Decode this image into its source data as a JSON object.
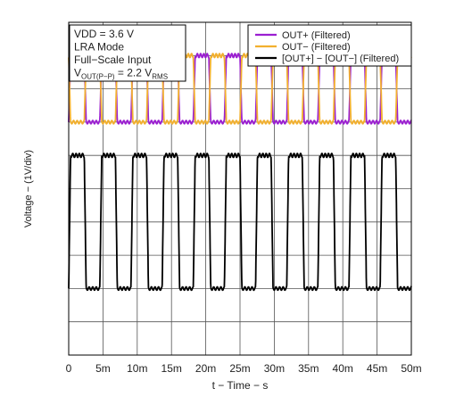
{
  "chart_data": {
    "type": "line",
    "title": "",
    "xlabel": "t − Time − s",
    "ylabel": "Voltage − (1V/div)",
    "x_ticks": [
      "0",
      "5m",
      "10m",
      "15m",
      "20m",
      "25m",
      "30m",
      "35m",
      "40m",
      "45m",
      "50m"
    ],
    "xlim": [
      0,
      0.05
    ],
    "ylim": [
      -5,
      5
    ],
    "y_unit": "1V/div",
    "grid": true,
    "legend_position": "top-right",
    "conditions": {
      "line1": "VDD = 3.6 V",
      "line2": "LRA Mode",
      "line3": "Full−Scale Input",
      "line4_main": "V",
      "line4_sub": "OUT(P−P)",
      "line4_mid": " = 2.2 V",
      "line4_sub2": "RMS"
    },
    "waveform": {
      "period_s": 0.004545,
      "cycles": 11,
      "duty": 0.5
    },
    "series": [
      {
        "name": "OUT+ (Filtered)",
        "color": "#9b1fd1",
        "high_v": 4.0,
        "low_v": 2.0,
        "phase": 0.0
      },
      {
        "name": "OUT− (Filtered)",
        "color": "#f2b02f",
        "high_v": 4.0,
        "low_v": 2.0,
        "phase": 0.5
      },
      {
        "name": "[OUT+] − [OUT−] (Filtered)",
        "color": "#000000",
        "high_v": 1.0,
        "low_v": -3.0,
        "phase": 0.0
      }
    ]
  }
}
